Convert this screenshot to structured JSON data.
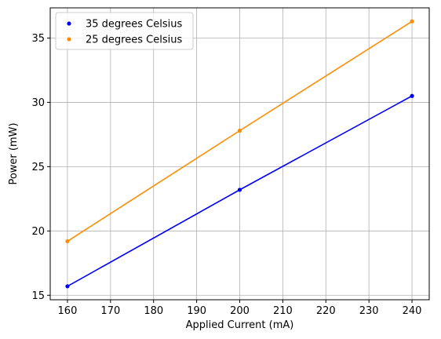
{
  "chart_data": {
    "type": "line",
    "xlabel": "Applied Current (mA)",
    "ylabel": "Power (mW)",
    "xlim": [
      156,
      244
    ],
    "ylim": [
      14.65,
      37.35
    ],
    "xticks": [
      160,
      170,
      180,
      190,
      200,
      210,
      220,
      230,
      240
    ],
    "yticks": [
      15,
      20,
      25,
      30,
      35
    ],
    "grid": true,
    "legend_position": "top-left",
    "x": [
      160,
      200,
      240
    ],
    "series": [
      {
        "name": "35 degrees Celsius",
        "color": "#0000ff",
        "values": [
          15.7,
          23.2,
          30.5
        ]
      },
      {
        "name": "25 degrees Celsius",
        "color": "#ff8c00",
        "values": [
          19.2,
          27.8,
          36.3
        ]
      }
    ]
  }
}
